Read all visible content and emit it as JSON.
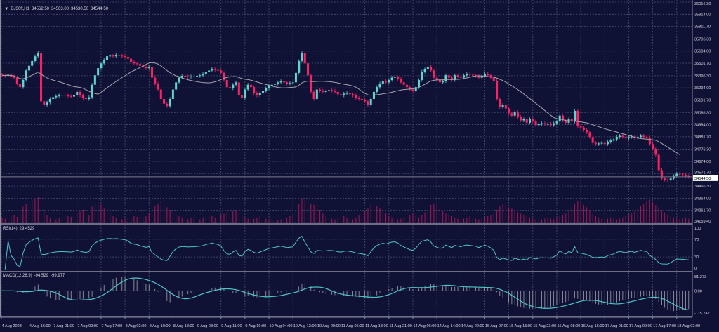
{
  "header": {
    "symbol": "DJ30ft,H1",
    "open": "34562.50",
    "high": "34563.00",
    "low": "34530.50",
    "close": "34544.50"
  },
  "colors": {
    "background": "#0f1235",
    "grid": "#4a4f72",
    "bull": "#5cd6cf",
    "bear": "#ff1f66",
    "ma": "#a4a4ae",
    "volume": "#c0195a",
    "rsi": "#4fc6c6",
    "macd_signal": "#4fc6c6",
    "macd_hist": "#b8b8c0"
  },
  "chart_data": [
    {
      "type": "candlestick",
      "title": "DJ30ft,H1",
      "current_price_label": "34544.50",
      "yticks": [
        "36016.30",
        "35914.00",
        "35811.70",
        "35706.30",
        "35604.00",
        "35501.70",
        "35396.30",
        "35294.00",
        "35191.70",
        "35086.30",
        "34984.00",
        "34881.70",
        "34776.30",
        "34674.00",
        "34571.70",
        "34466.30",
        "34364.00",
        "34261.70",
        "34159.40"
      ],
      "ylim": [
        34159.4,
        36016.3
      ],
      "xticks": [
        "4 Aug 2023",
        "4 Aug 16:00",
        "7 Aug 01:00",
        "7 Aug 09:00",
        "7 Aug 17:00",
        "8 Aug 02:00",
        "8 Aug 10:00",
        "8 Aug 18:00",
        "9 Aug 03:00",
        "9 Aug 11:00",
        "9 Aug 19:00",
        "10 Aug 04:00",
        "10 Aug 12:00",
        "10 Aug 20:00",
        "11 Aug 05:00",
        "11 Aug 13:00",
        "11 Aug 21:00",
        "14 Aug 06:00",
        "14 Aug 14:00",
        "14 Aug 22:00",
        "15 Aug 07:00",
        "15 Aug 15:00",
        "15 Aug 23:00",
        "16 Aug 08:00",
        "16 Aug 16:00",
        "17 Aug 01:00",
        "17 Aug 09:00",
        "17 Aug 17:00",
        "18 Aug 02:00"
      ],
      "grid": true,
      "overlay": "moving average",
      "closes": [
        35400,
        35395,
        35405,
        35390,
        35380,
        35330,
        35300,
        35360,
        35440,
        35480,
        35520,
        35560,
        35590,
        35180,
        35150,
        35170,
        35200,
        35215,
        35225,
        35230,
        35235,
        35230,
        35225,
        35220,
        35230,
        35260,
        35230,
        35210,
        35200,
        35215,
        35320,
        35400,
        35460,
        35500,
        35530,
        35560,
        35565,
        35560,
        35570,
        35565,
        35560,
        35555,
        35540,
        35510,
        35500,
        35495,
        35480,
        35470,
        35460,
        35470,
        35380,
        35330,
        35280,
        35200,
        35160,
        35140,
        35200,
        35280,
        35340,
        35380,
        35395,
        35390,
        35385,
        35390,
        35390,
        35395,
        35400,
        35410,
        35430,
        35440,
        35455,
        35445,
        35440,
        35420,
        35360,
        35300,
        35290,
        35320,
        35340,
        35230,
        35210,
        35280,
        35320,
        35300,
        35250,
        35230,
        35250,
        35270,
        35290,
        35310,
        35320,
        35330,
        35340,
        35350,
        35340,
        35330,
        35335,
        35340,
        35420,
        35520,
        35590,
        35500,
        35400,
        35260,
        35200,
        35280,
        35270,
        35260,
        35265,
        35275,
        35270,
        35260,
        35240,
        35230,
        35245,
        35250,
        35240,
        35230,
        35210,
        35200,
        35190,
        35180,
        35150,
        35200,
        35260,
        35300,
        35330,
        35350,
        35340,
        35360,
        35380,
        35385,
        35370,
        35340,
        35320,
        35300,
        35280,
        35270,
        35300,
        35360,
        35430,
        35450,
        35470,
        35440,
        35380,
        35360,
        35340,
        35350,
        35400,
        35380,
        35360,
        35400,
        35390,
        35380,
        35400,
        35410,
        35405,
        35400,
        35395,
        35380,
        35395,
        35410,
        35400,
        35380,
        35350,
        35200,
        35130,
        35150,
        35120,
        35080,
        35060,
        35090,
        35050,
        35020,
        35030,
        35000,
        35030,
        35010,
        34980,
        34990,
        34995,
        34990,
        34990,
        34980,
        34995,
        35010,
        35060,
        35020,
        35000,
        35030,
        35010,
        35100,
        34970,
        34960,
        34940,
        34920,
        34880,
        34830,
        34820,
        34825,
        34830,
        34820,
        34840,
        34850,
        34860,
        34880,
        34890,
        34880,
        34870,
        34880,
        34885,
        34870,
        34880,
        34890,
        34880,
        34875,
        34820,
        34780,
        34730,
        34600,
        34530,
        34520,
        34515,
        34530,
        34550,
        34570,
        34565,
        34560,
        34550,
        34544.5
      ],
      "volume_relative": [
        8,
        6,
        5,
        10,
        12,
        9,
        14,
        25,
        30,
        28,
        35,
        38,
        40,
        36,
        20,
        12,
        8,
        6,
        5,
        7,
        6,
        8,
        10,
        9,
        12,
        15,
        18,
        20,
        10,
        12,
        25,
        30,
        32,
        28,
        22,
        18,
        15,
        10,
        8,
        6,
        5,
        6,
        8,
        7,
        10,
        9,
        12,
        8,
        10,
        14,
        20,
        26,
        30,
        34,
        30,
        24,
        20,
        18,
        12,
        10,
        8,
        6,
        5,
        7,
        8,
        6,
        5,
        8,
        10,
        12,
        10,
        8,
        9,
        12,
        14,
        16,
        12,
        18,
        20,
        15,
        10,
        8,
        6,
        5,
        6,
        8,
        10,
        8,
        6,
        5,
        6,
        5,
        4,
        5,
        6,
        8,
        10,
        12,
        20,
        30,
        38,
        36,
        34,
        30,
        28,
        24,
        20,
        14,
        10,
        8,
        6,
        5,
        6,
        8,
        10,
        8,
        6,
        5,
        8,
        12,
        14,
        18,
        22,
        28,
        30,
        26,
        22,
        18,
        14,
        10,
        8,
        6,
        5,
        6,
        8,
        10,
        12,
        14,
        10,
        8,
        12,
        16,
        20,
        28,
        30,
        26,
        22,
        18,
        14,
        12,
        10,
        8,
        6,
        5,
        6,
        8,
        10,
        8,
        6,
        5,
        6,
        8,
        10,
        12,
        16,
        20,
        26,
        30,
        28,
        24,
        22,
        18,
        16,
        14,
        12,
        10,
        8,
        6,
        5,
        6,
        5,
        6,
        8,
        6,
        5,
        8,
        10,
        12,
        14,
        18,
        24,
        30,
        34,
        32,
        28,
        24,
        20,
        14,
        10,
        8,
        6,
        5,
        6,
        8,
        6,
        5,
        6,
        8,
        10,
        12,
        14,
        18,
        22,
        26,
        30,
        34,
        36,
        32,
        28,
        24,
        20,
        16,
        12,
        10,
        8,
        6,
        5,
        6,
        8,
        6
      ]
    },
    {
      "type": "line",
      "title": "RSI(14)",
      "value_label": "29.4529",
      "yticks": [
        "100",
        "70",
        "30",
        "0"
      ],
      "ylim": [
        0,
        100
      ]
    },
    {
      "type": "bar+line",
      "title": "MACD(12,26,9)",
      "value_labels": [
        "-94.529",
        "-99.977"
      ],
      "yticks": [
        "81.273",
        "0.00",
        "-115.742"
      ],
      "ylim": [
        -115.742,
        81.273
      ]
    }
  ]
}
